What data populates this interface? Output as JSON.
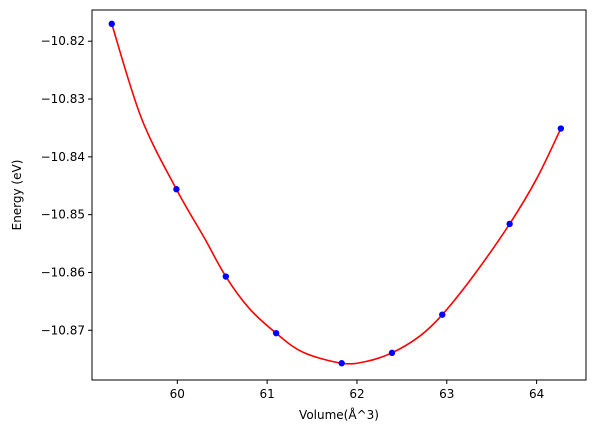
{
  "chart_data": {
    "type": "scatter",
    "title": "",
    "xlabel": "Volume(Å^3)",
    "ylabel": "Energy (eV)",
    "xlim": [
      59.05,
      64.55
    ],
    "ylim": [
      -10.8786,
      -10.8146
    ],
    "xticks": [
      60,
      61,
      62,
      63,
      64
    ],
    "xtick_labels": [
      "60",
      "61",
      "62",
      "63",
      "64"
    ],
    "yticks": [
      -10.82,
      -10.83,
      -10.84,
      -10.85,
      -10.86,
      -10.87
    ],
    "ytick_labels": [
      "−10.82",
      "−10.83",
      "−10.84",
      "−10.85",
      "−10.86",
      "−10.87"
    ],
    "grid": false,
    "legend": "none",
    "series": [
      {
        "type": "scatter",
        "color": "#0000ff",
        "marker": "circle",
        "x": [
          59.27,
          59.99,
          60.54,
          61.1,
          61.83,
          62.39,
          62.95,
          63.7,
          64.27
        ],
        "y": [
          -10.817,
          -10.8456,
          -10.8607,
          -10.8705,
          -10.8757,
          -10.8739,
          -10.8673,
          -10.8516,
          -10.8351
        ]
      },
      {
        "type": "line",
        "color": "#ff0000",
        "x": [
          59.27,
          59.6,
          59.99,
          60.3,
          60.54,
          60.8,
          61.1,
          61.4,
          61.83,
          62.1,
          62.39,
          62.7,
          62.95,
          63.3,
          63.7,
          64.0,
          64.27
        ],
        "y": [
          -10.817,
          -10.8333,
          -10.8456,
          -10.854,
          -10.8607,
          -10.8662,
          -10.8705,
          -10.8738,
          -10.8757,
          -10.8754,
          -10.8739,
          -10.871,
          -10.8673,
          -10.8605,
          -10.8516,
          -10.8438,
          -10.8351
        ]
      }
    ]
  }
}
